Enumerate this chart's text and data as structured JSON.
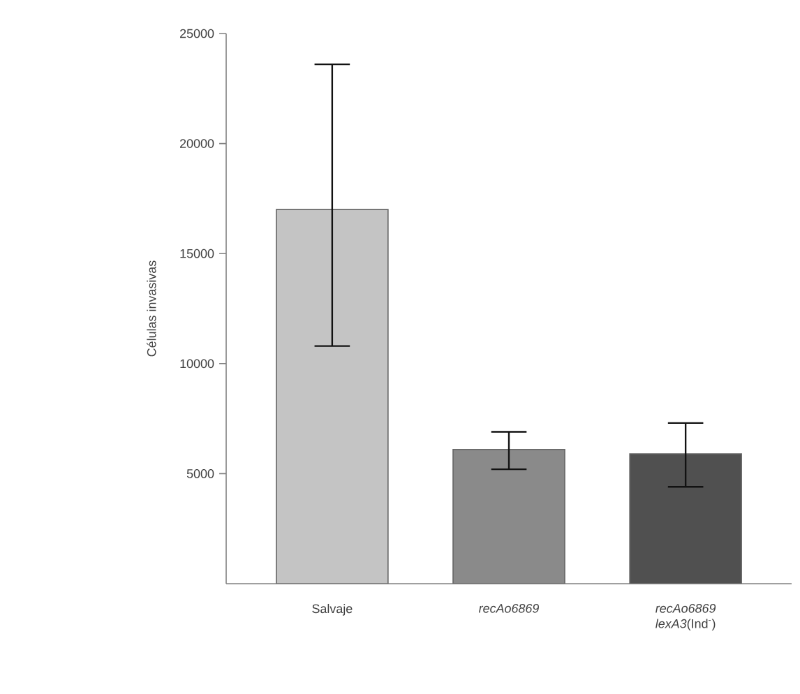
{
  "chart_data": {
    "type": "bar",
    "ylabel": "Células invasivas",
    "categories": [
      "Salvaje",
      "*recAo6869*",
      "*recAo6869* *lexA3*(Ind$^{-}$)"
    ],
    "values": [
      17000,
      6100,
      5900
    ],
    "colors": [
      "#c4c4c4",
      "#8a8a8a",
      "#505050"
    ],
    "errors": [
      [
        10800,
        23600
      ],
      [
        5200,
        6900
      ],
      [
        4400,
        7300
      ]
    ],
    "ylim": [
      0,
      25000
    ],
    "yticks": [
      5000,
      10000,
      15000,
      20000,
      25000
    ],
    "grid": false
  }
}
